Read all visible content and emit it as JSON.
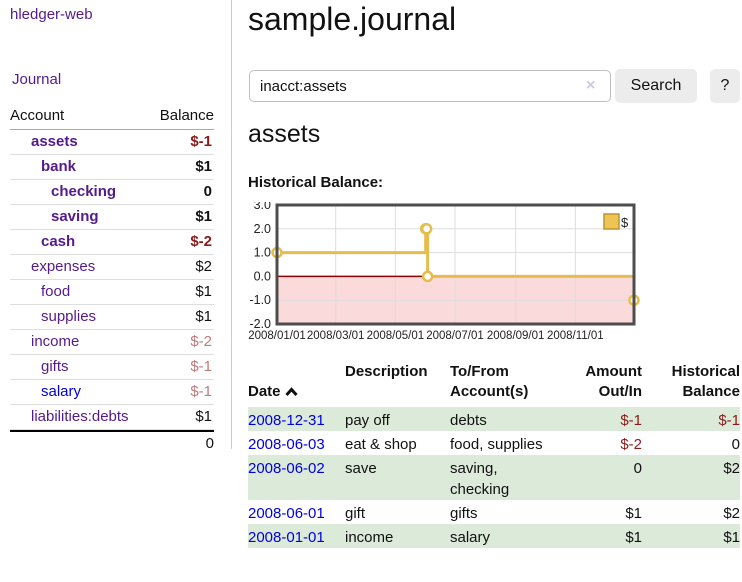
{
  "sidebar": {
    "brand": "hledger-web",
    "journal_label": "Journal",
    "accounts_table": {
      "headers": {
        "account": "Account",
        "balance": "Balance"
      },
      "rows": [
        {
          "name": "assets",
          "indent": 1,
          "bold": true,
          "link_color": "purple",
          "balance": "$-1",
          "balance_tone": "neg-strong"
        },
        {
          "name": "bank",
          "indent": 2,
          "bold": true,
          "link_color": "purple",
          "balance": "$1",
          "balance_tone": "pos"
        },
        {
          "name": "checking",
          "indent": 3,
          "bold": true,
          "link_color": "purple",
          "balance": "0",
          "balance_tone": "pos"
        },
        {
          "name": "saving",
          "indent": 3,
          "bold": true,
          "link_color": "purple",
          "balance": "$1",
          "balance_tone": "pos"
        },
        {
          "name": "cash",
          "indent": 2,
          "bold": true,
          "link_color": "purple",
          "balance": "$-2",
          "balance_tone": "neg-strong"
        },
        {
          "name": "expenses",
          "indent": 1,
          "bold": false,
          "link_color": "purple",
          "balance": "$2",
          "balance_tone": "pos"
        },
        {
          "name": "food",
          "indent": 2,
          "bold": false,
          "link_color": "purple",
          "balance": "$1",
          "balance_tone": "pos"
        },
        {
          "name": "supplies",
          "indent": 2,
          "bold": false,
          "link_color": "purple",
          "balance": "$1",
          "balance_tone": "pos"
        },
        {
          "name": "income",
          "indent": 1,
          "bold": false,
          "link_color": "purple",
          "balance": "$-2",
          "balance_tone": "neg-soft"
        },
        {
          "name": "gifts",
          "indent": 2,
          "bold": false,
          "link_color": "purple",
          "balance": "$-1",
          "balance_tone": "neg-soft"
        },
        {
          "name": "salary",
          "indent": 2,
          "bold": false,
          "link_color": "blue",
          "balance": "$-1",
          "balance_tone": "neg-soft"
        },
        {
          "name": "liabilities:debts",
          "indent": 1,
          "bold": false,
          "link_color": "purple",
          "balance": "$1",
          "balance_tone": "pos"
        }
      ],
      "total": "0"
    }
  },
  "main": {
    "title": "sample.journal",
    "search": {
      "value": "inacct:assets",
      "clear_icon": "×",
      "search_button": "Search",
      "help_button": "?"
    },
    "account_heading": "assets",
    "chart_label": "Historical Balance:"
  },
  "chart_data": {
    "type": "line",
    "title": "Historical Balance:",
    "step": true,
    "series": [
      {
        "name": "$",
        "points": [
          [
            "2008-01-01",
            1
          ],
          [
            "2008-06-01",
            2
          ],
          [
            "2008-06-02",
            2
          ],
          [
            "2008-06-03",
            0
          ],
          [
            "2008-12-31",
            -1
          ]
        ]
      }
    ],
    "x_range": [
      "2008-01-01",
      "2008-12-31"
    ],
    "x_ticks": [
      "2008/01/01",
      "2008/03/01",
      "2008/05/01",
      "2008/07/01",
      "2008/09/01",
      "2008/11/01"
    ],
    "y_ticks": [
      3.0,
      2.0,
      1.0,
      0.0,
      -1.0,
      -2.0
    ],
    "ylim": [
      -2,
      3
    ],
    "legend": "$",
    "legend_position": "top-right",
    "grid": true,
    "colors": {
      "line": "#e6bd4a",
      "marker_fill": "#ffffff",
      "legend_fill": "#eec455",
      "legend_border": "#b9962e",
      "negative_band": "#fadada",
      "zero_line": "#8f0000",
      "grid": "#dddddd",
      "border": "#4d4d4d"
    }
  },
  "register_table": {
    "headers": {
      "date": "Date",
      "description": "Description",
      "accounts": "To/From\nAccount(s)",
      "amount": "Amount\nOut/In",
      "balance": "Historical\nBalance"
    },
    "sort_icon": "chevron-up",
    "rows": [
      {
        "date": "2008-12-31",
        "description": "pay off",
        "accounts": "debts",
        "amount": "$-1",
        "amount_tone": "neg-strong",
        "balance": "$-1",
        "balance_tone": "neg-strong",
        "highlight": true
      },
      {
        "date": "2008-06-03",
        "description": "eat & shop",
        "accounts": "food, supplies",
        "amount": "$-2",
        "amount_tone": "neg-strong",
        "balance": "0",
        "balance_tone": "pos",
        "highlight": false
      },
      {
        "date": "2008-06-02",
        "description": "save",
        "accounts": "saving,\nchecking",
        "amount": "0",
        "amount_tone": "pos",
        "balance": "$2",
        "balance_tone": "pos",
        "highlight": true
      },
      {
        "date": "2008-06-01",
        "description": "gift",
        "accounts": "gifts",
        "amount": "$1",
        "amount_tone": "pos",
        "balance": "$2",
        "balance_tone": "pos",
        "highlight": false
      },
      {
        "date": "2008-01-01",
        "description": "income",
        "accounts": "salary",
        "amount": "$1",
        "amount_tone": "pos",
        "balance": "$1",
        "balance_tone": "pos",
        "highlight": true
      }
    ]
  }
}
